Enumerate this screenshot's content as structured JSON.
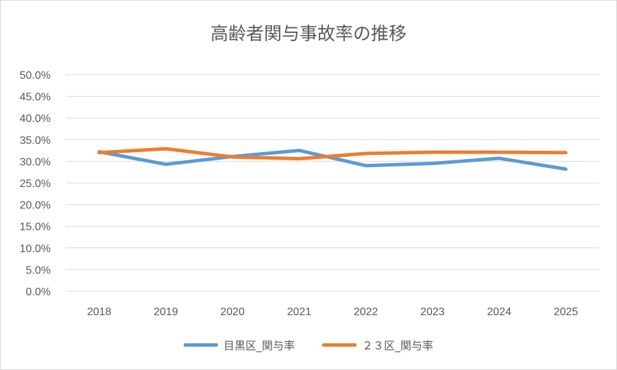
{
  "chart_data": {
    "type": "line",
    "title": "高齢者関与事故率の推移",
    "categories": [
      "2018",
      "2019",
      "2020",
      "2021",
      "2022",
      "2023",
      "2024",
      "2025"
    ],
    "y_ticks": [
      "0.0%",
      "5.0%",
      "10.0%",
      "15.0%",
      "20.0%",
      "25.0%",
      "30.0%",
      "35.0%",
      "40.0%",
      "45.0%",
      "50.0%"
    ],
    "ylim": [
      0,
      50
    ],
    "y_unit": "percent",
    "grid": true,
    "legend_position": "bottom",
    "series": [
      {
        "name": "目黒区_関与率",
        "color": "#5b9bd5",
        "values": [
          32.2,
          29.3,
          31.1,
          32.5,
          29.0,
          29.5,
          30.7,
          28.2
        ]
      },
      {
        "name": "２３区_関与率",
        "color": "#ed7d31",
        "values": [
          32.0,
          32.9,
          31.0,
          30.6,
          31.8,
          32.1,
          32.1,
          32.0
        ]
      }
    ]
  }
}
